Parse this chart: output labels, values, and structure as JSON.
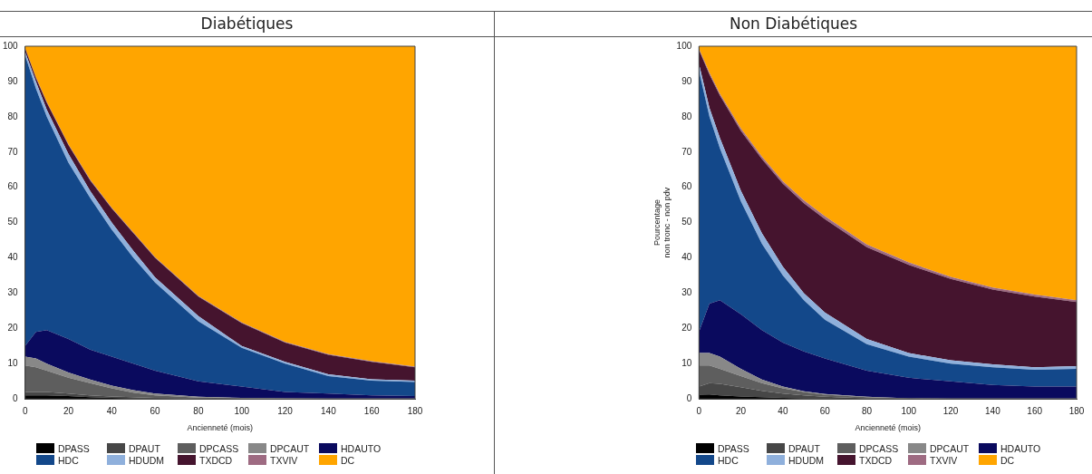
{
  "chart_data": [
    {
      "type": "area",
      "title": "Diabétiques",
      "xlabel": "Ancienneté (mois)",
      "stacked": true,
      "legend": "bottom",
      "x": [
        0,
        5,
        10,
        20,
        30,
        40,
        50,
        60,
        80,
        100,
        120,
        140,
        160,
        180
      ],
      "xlim": [
        0,
        180
      ],
      "xticks": [
        0,
        20,
        40,
        60,
        80,
        100,
        120,
        140,
        160,
        180
      ],
      "ylim": [
        0,
        100
      ],
      "yticks": [
        0,
        10,
        20,
        30,
        40,
        50,
        60,
        70,
        80,
        90,
        100
      ],
      "series": [
        {
          "name": "DPASS",
          "color": "#000000",
          "values": [
            1,
            1,
            1,
            0.8,
            0.5,
            0.3,
            0.2,
            0.1,
            0,
            0,
            0,
            0,
            0,
            0
          ]
        },
        {
          "name": "DPAUT",
          "color": "#474747",
          "values": [
            1,
            1,
            1,
            0.7,
            0.5,
            0.4,
            0.3,
            0.2,
            0.1,
            0,
            0,
            0,
            0,
            0
          ]
        },
        {
          "name": "DPCASS",
          "color": "#5e5e5e",
          "values": [
            7.5,
            7,
            6,
            4.5,
            3.5,
            2.3,
            1.3,
            0.7,
            0.3,
            0.2,
            0,
            0,
            0,
            0
          ]
        },
        {
          "name": "DPCAUT",
          "color": "#888888",
          "values": [
            2.5,
            2.5,
            2,
            1.5,
            1,
            0.8,
            0.7,
            0.5,
            0.2,
            0.1,
            0.2,
            0.1,
            0.1,
            0.1
          ]
        },
        {
          "name": "HDAUTO",
          "color": "#0a0a5e",
          "values": [
            3,
            7.5,
            9.5,
            9.5,
            8.5,
            8.2,
            7.5,
            6.5,
            4.4,
            3.2,
            1.8,
            1.4,
            0.9,
            0.7
          ]
        },
        {
          "name": "HDC",
          "color": "#13488a",
          "values": [
            82.4,
            69,
            60.5,
            50,
            43,
            36,
            30,
            25,
            17,
            11,
            8,
            5,
            4.2,
            4
          ]
        },
        {
          "name": "HDUDM",
          "color": "#8fb0dc",
          "values": [
            1,
            2,
            2,
            2.5,
            2,
            2,
            2,
            1.5,
            1.5,
            0.5,
            0.5,
            0.5,
            0.4,
            0.4
          ]
        },
        {
          "name": "TXDCD",
          "color": "#45142e",
          "values": [
            1,
            1,
            2,
            2.5,
            3,
            4,
            5,
            5.5,
            5.5,
            6.5,
            5.5,
            5.5,
            4.9,
            3.8
          ]
        },
        {
          "name": "TXVIV",
          "color": "#9e6b82",
          "values": [
            0.1,
            0.2,
            0.2,
            0.2,
            0.2,
            0.2,
            0.2,
            0.2,
            0.2,
            0.2,
            0.2,
            0.2,
            0.2,
            0.2
          ]
        },
        {
          "name": "DC",
          "color": "#ffa500",
          "values": [
            0.5,
            8.8,
            15.8,
            27.8,
            37.8,
            45.8,
            52.8,
            59.8,
            70.8,
            78.3,
            83.8,
            87.3,
            89.3,
            90.8
          ]
        }
      ]
    },
    {
      "type": "area",
      "title": "Non Diabétiques",
      "xlabel": "Ancienneté (mois)",
      "ylabel": "Pourcentage\nnon tronc - non pdv",
      "stacked": true,
      "legend": "bottom",
      "x": [
        0,
        5,
        10,
        20,
        30,
        40,
        50,
        60,
        80,
        100,
        120,
        140,
        160,
        180
      ],
      "xlim": [
        0,
        180
      ],
      "xticks": [
        0,
        20,
        40,
        60,
        80,
        100,
        120,
        140,
        160,
        180
      ],
      "ylim": [
        0,
        100
      ],
      "yticks": [
        0,
        10,
        20,
        30,
        40,
        50,
        60,
        70,
        80,
        90,
        100
      ],
      "series": [
        {
          "name": "DPASS",
          "color": "#000000",
          "values": [
            1.2,
            1.3,
            1,
            0.7,
            0.5,
            0.3,
            0.2,
            0.1,
            0,
            0,
            0,
            0,
            0,
            0
          ]
        },
        {
          "name": "DPAUT",
          "color": "#474747",
          "values": [
            2.3,
            3.2,
            3.3,
            2.6,
            1.8,
            1.2,
            0.8,
            0.5,
            0.2,
            0.1,
            0,
            0,
            0,
            0
          ]
        },
        {
          "name": "DPCASS",
          "color": "#5e5e5e",
          "values": [
            6,
            5,
            4.2,
            3.2,
            2.2,
            1.5,
            1,
            0.6,
            0.3,
            0.1,
            0,
            0,
            0,
            0
          ]
        },
        {
          "name": "DPCAUT",
          "color": "#888888",
          "values": [
            3.5,
            3.5,
            3.5,
            2,
            1,
            0.5,
            0.2,
            0.2,
            0.1,
            0,
            0.1,
            0.1,
            0.1,
            0.1
          ]
        },
        {
          "name": "HDAUTO",
          "color": "#0a0a5e",
          "values": [
            6,
            14,
            16,
            15.5,
            14,
            12.5,
            11.3,
            10.1,
            7.4,
            5.8,
            4.9,
            3.9,
            3.4,
            3.4
          ]
        },
        {
          "name": "HDC",
          "color": "#13488a",
          "values": [
            74,
            53,
            43,
            32,
            24.5,
            19,
            14.5,
            11,
            7.5,
            6,
            5,
            5,
            4.8,
            5
          ]
        },
        {
          "name": "HDUDM",
          "color": "#8fb0dc",
          "values": [
            2,
            2.5,
            3,
            3,
            3,
            2.5,
            2,
            2,
            1.5,
            1,
            1,
            0.8,
            0.7,
            0.8
          ]
        },
        {
          "name": "TXDCD",
          "color": "#45142e",
          "values": [
            4,
            9.5,
            12,
            17,
            21,
            23.5,
            25.5,
            26.5,
            26,
            25,
            23,
            21.2,
            20,
            18.2
          ]
        },
        {
          "name": "TXVIV",
          "color": "#9e6b82",
          "values": [
            0.3,
            0.5,
            0.5,
            0.7,
            0.7,
            0.7,
            0.8,
            0.8,
            0.8,
            0.7,
            0.6,
            0.6,
            0.6,
            0.5
          ]
        },
        {
          "name": "DC",
          "color": "#ffa500",
          "values": [
            0.7,
            7.5,
            13.5,
            23.3,
            31.3,
            38.3,
            43.7,
            48.2,
            56.2,
            61.3,
            65.4,
            68.4,
            70.4,
            72
          ]
        }
      ]
    }
  ]
}
